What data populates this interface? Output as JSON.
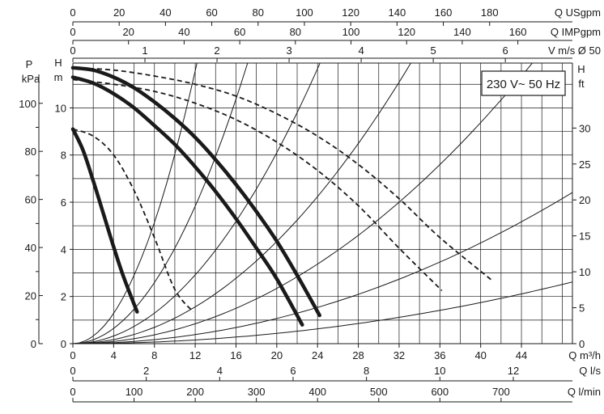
{
  "chart_data": {
    "type": "line",
    "badge": "230 V~ 50 Hz",
    "x_axes": {
      "q_m3h": {
        "label": "Q m³/h",
        "ticks": [
          "0",
          "4",
          "8",
          "12",
          "16",
          "20",
          "24",
          "28",
          "32",
          "36",
          "40",
          "44"
        ]
      },
      "q_usgpm": {
        "label": "Q USgpm",
        "ticks": [
          "0",
          "20",
          "40",
          "60",
          "80",
          "100",
          "120",
          "140",
          "160",
          "180"
        ]
      },
      "q_impgpm": {
        "label": "Q IMPgpm",
        "ticks": [
          "0",
          "20",
          "40",
          "60",
          "80",
          "100",
          "120",
          "140",
          "160"
        ]
      },
      "v_ms": {
        "label": "V m/s Ø 50",
        "ticks": [
          "0",
          "1",
          "2",
          "3",
          "4",
          "5",
          "6"
        ]
      },
      "q_ls": {
        "label": "Q l/s",
        "ticks": [
          "0",
          "2",
          "4",
          "6",
          "8",
          "10",
          "12"
        ]
      },
      "q_lmin": {
        "label": "Q l/min",
        "ticks": [
          "0",
          "100",
          "200",
          "300",
          "400",
          "500",
          "600",
          "700"
        ]
      }
    },
    "y_axes": {
      "h_m": {
        "label_top": "H",
        "label_bottom": "m",
        "ticks": [
          "0",
          "2",
          "4",
          "6",
          "8",
          "10"
        ]
      },
      "p_kpa": {
        "label_top": "P",
        "label_bottom": "kPa",
        "ticks": [
          "0",
          "20",
          "40",
          "60",
          "80",
          "100"
        ]
      },
      "h_ft": {
        "label_top": "H",
        "label_bottom": "ft",
        "ticks": [
          "0",
          "5",
          "10",
          "15",
          "20",
          "25",
          "30"
        ]
      }
    },
    "xlim": [
      0,
      49
    ],
    "ylim": [
      0,
      11.9
    ],
    "series": [
      {
        "style": "pump",
        "x": [
          0,
          1,
          2,
          3,
          4,
          5,
          6.3
        ],
        "y": [
          9.1,
          8.2,
          6.9,
          5.5,
          4.1,
          2.8,
          1.35
        ]
      },
      {
        "style": "pump",
        "x": [
          0,
          2,
          4,
          6,
          8,
          10,
          12,
          14,
          16,
          18,
          20,
          22.5
        ],
        "y": [
          11.3,
          11.05,
          10.6,
          10.0,
          9.25,
          8.45,
          7.5,
          6.45,
          5.3,
          4.05,
          2.75,
          0.8
        ]
      },
      {
        "style": "pump",
        "x": [
          0,
          2,
          4,
          6,
          8,
          10,
          12,
          14,
          16,
          18,
          20,
          22,
          24.2
        ],
        "y": [
          11.7,
          11.6,
          11.3,
          10.85,
          10.25,
          9.55,
          8.75,
          7.8,
          6.75,
          5.6,
          4.35,
          2.9,
          1.2
        ]
      },
      {
        "style": "power",
        "x": [
          0,
          2,
          4,
          6,
          8,
          10,
          11.8
        ],
        "y": [
          9.1,
          8.8,
          8.0,
          6.5,
          4.5,
          2.3,
          1.35
        ]
      },
      {
        "style": "power",
        "x": [
          0,
          4,
          8,
          12,
          16,
          20,
          24,
          28,
          32,
          36.2
        ],
        "y": [
          11.2,
          11.0,
          10.7,
          10.2,
          9.5,
          8.55,
          7.35,
          5.85,
          4.05,
          2.25
        ]
      },
      {
        "style": "power",
        "x": [
          0,
          4,
          8,
          12,
          16,
          20,
          24,
          28,
          32,
          36,
          41.2
        ],
        "y": [
          11.7,
          11.6,
          11.35,
          11.0,
          10.5,
          9.75,
          8.8,
          7.6,
          6.15,
          4.5,
          2.65
        ]
      }
    ],
    "system_curves": [
      {
        "k": 0.00109
      },
      {
        "k": 0.00267
      },
      {
        "k": 0.00586
      },
      {
        "k": 0.01083
      },
      {
        "k": 0.02025
      },
      {
        "k": 0.0405
      },
      {
        "k": 0.08033
      }
    ]
  }
}
